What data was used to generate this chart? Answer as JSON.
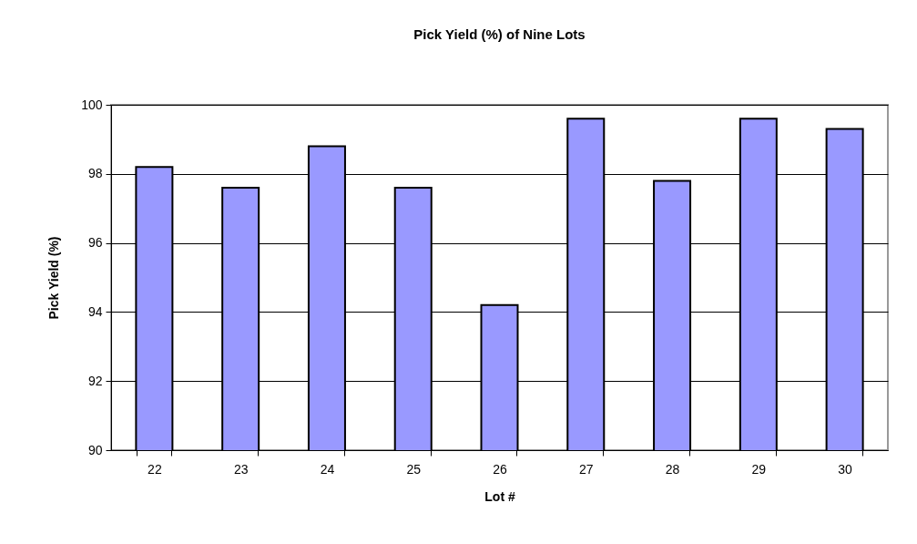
{
  "chart_data": {
    "type": "bar",
    "title": "Pick Yield (%) of Nine Lots",
    "xlabel": "Lot #",
    "ylabel": "Pick Yield (%)",
    "categories": [
      "22",
      "23",
      "24",
      "25",
      "26",
      "27",
      "28",
      "29",
      "30"
    ],
    "values": [
      98.2,
      97.6,
      98.8,
      97.6,
      94.2,
      99.6,
      97.8,
      99.6,
      99.3
    ],
    "color": "#9999ff",
    "ylim": [
      90,
      100
    ],
    "yticks": [
      90,
      92,
      94,
      96,
      98,
      100
    ],
    "grid": "y"
  }
}
